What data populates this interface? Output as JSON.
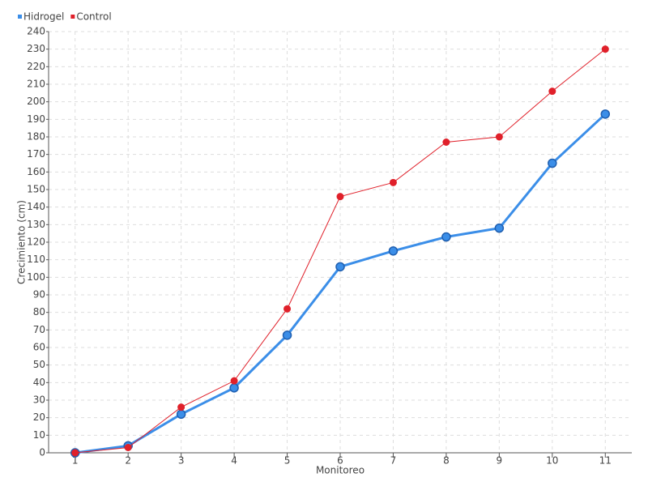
{
  "chart_data": {
    "type": "line",
    "x_label": "Monitoreo",
    "y_label": "Crecimiento (cm)",
    "categories": [
      "1",
      "2",
      "3",
      "4",
      "5",
      "6",
      "7",
      "8",
      "9",
      "10",
      "11"
    ],
    "series": [
      {
        "name": "Hidrogel",
        "color": "#3b8ee8",
        "values": [
          0,
          4,
          22,
          37,
          67,
          106,
          115,
          123,
          128,
          165,
          193
        ]
      },
      {
        "name": "Control",
        "color": "#e0202a",
        "values": [
          0,
          3,
          26,
          41,
          82,
          146,
          154,
          177,
          180,
          206,
          230
        ]
      }
    ],
    "ylim": [
      0,
      240
    ],
    "yticks": [
      0,
      10,
      20,
      30,
      40,
      50,
      60,
      70,
      80,
      90,
      100,
      110,
      120,
      130,
      140,
      150,
      160,
      170,
      180,
      190,
      200,
      210,
      220,
      230,
      240
    ],
    "grid": true,
    "legend": "top-left"
  }
}
